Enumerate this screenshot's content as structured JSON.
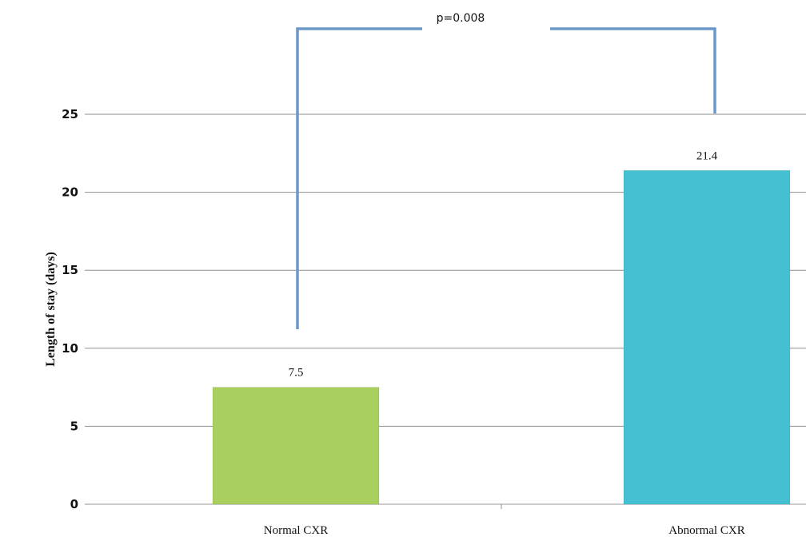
{
  "chart_data": {
    "type": "bar",
    "categories": [
      "Normal CXR",
      "Abnormal CXR"
    ],
    "values": [
      7.5,
      21.4
    ],
    "data_labels": [
      "7.5",
      "21.4"
    ],
    "ylabel": "Length of stay (days)",
    "ylim": [
      0,
      25
    ],
    "yticks": [
      0,
      5,
      10,
      15,
      20,
      25
    ],
    "grid": true,
    "colors": [
      "#a9cf5e",
      "#45bfd2"
    ],
    "annotation": {
      "text": "p=0.008",
      "from_category": 0,
      "to_category": 1,
      "color": "#6a98c8"
    }
  }
}
